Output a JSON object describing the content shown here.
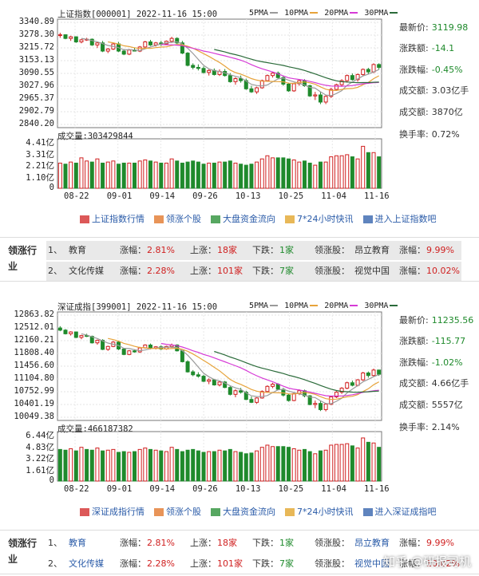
{
  "panels": [
    {
      "title": "上证指数[000001] 2022-11-16 15:00",
      "y_ticks": [
        "3340.89",
        "3278.30",
        "3215.72",
        "3153.13",
        "3090.55",
        "3027.96",
        "2965.37",
        "2902.79",
        "2840.20"
      ],
      "vol_title": "成交量:303429844",
      "vol_ticks": [
        "4.41亿",
        "3.31亿",
        "2.21亿",
        "1.10亿",
        "0"
      ],
      "x_ticks": [
        "08-22",
        "09-01",
        "09-14",
        "09-26",
        "10-13",
        "10-25",
        "11-04",
        "11-16"
      ],
      "stats": [
        {
          "label": "最新价:",
          "value": "3119.98"
        },
        {
          "label": "涨跌额:",
          "value": "-14.1"
        },
        {
          "label": "涨跌幅:",
          "value": "-0.45%"
        },
        {
          "label": "成交额:",
          "value": "3.03亿手"
        },
        {
          "label": "成交额:",
          "value": "3870亿"
        },
        {
          "label": "换手率:",
          "value": "0.72%"
        }
      ],
      "links": [
        "上证指数行情",
        "领涨个股",
        "大盘资金流向",
        "7*24小时快讯",
        "进入上证指数吧"
      ]
    },
    {
      "title": "深证成指[399001] 2022-11-16 15:00",
      "y_ticks": [
        "12863.82",
        "12512.01",
        "12160.21",
        "11808.40",
        "11456.60",
        "11104.80",
        "10752.99",
        "10401.19",
        "10049.38"
      ],
      "vol_title": "成交量:466187382",
      "vol_ticks": [
        "6.44亿",
        "4.83亿",
        "3.22亿",
        "1.61亿",
        "0"
      ],
      "x_ticks": [
        "08-22",
        "09-01",
        "09-14",
        "09-26",
        "10-13",
        "10-25",
        "11-04",
        "11-16"
      ],
      "stats": [
        {
          "label": "最新价:",
          "value": "11235.56"
        },
        {
          "label": "涨跌额:",
          "value": "-115.77"
        },
        {
          "label": "涨跌幅:",
          "value": "-1.02%"
        },
        {
          "label": "成交额:",
          "value": "4.66亿手"
        },
        {
          "label": "成交额:",
          "value": "5557亿"
        },
        {
          "label": "换手率:",
          "value": "2.14%"
        }
      ],
      "links": [
        "深证成指行情",
        "领涨个股",
        "大盘资金流向",
        "7*24小时快讯",
        "进入深证成指吧"
      ]
    }
  ],
  "legend": [
    {
      "name": "5PMA",
      "color": "#9a9a9a"
    },
    {
      "name": "10PMA",
      "color": "#e7a33a"
    },
    {
      "name": "20PMA",
      "color": "#d63ad6"
    },
    {
      "name": "30PMA",
      "color": "#2b6b3a"
    }
  ],
  "industry_header": "领涨行业",
  "industry_rows": [
    {
      "rank": "1、",
      "name": "教育",
      "chg_label": "涨幅：",
      "chg": "2.81%",
      "up_label": "上涨：",
      "up": "18家",
      "down_label": "下跌：",
      "down": "1家",
      "lead_label": "领涨股：",
      "lead": "昂立教育",
      "lead_chg_label": "涨幅：",
      "lead_chg": "9.99%"
    },
    {
      "rank": "2、",
      "name": "文化传媒",
      "chg_label": "涨幅：",
      "chg": "2.28%",
      "up_label": "上涨：",
      "up": "101家",
      "down_label": "下跌：",
      "down": "7家",
      "lead_label": "领涨股：",
      "lead": "视觉中国",
      "lead_chg_label": "涨幅：",
      "lead_chg": "10.02%"
    }
  ],
  "watermark": "知乎 @研报司机",
  "colors": {
    "up": "#d02020",
    "down": "#1f8a2c",
    "link": "#2a5ba8"
  },
  "chart_data": [
    {
      "type": "candlestick",
      "title": "上证指数[000001] 2022-11-16 15:00",
      "ylim": [
        2840.2,
        3340.89
      ],
      "candles": [
        [
          3278,
          3290,
          3265,
          3280
        ],
        [
          3280,
          3282,
          3258,
          3262
        ],
        [
          3262,
          3275,
          3250,
          3270
        ],
        [
          3270,
          3272,
          3240,
          3245
        ],
        [
          3245,
          3260,
          3238,
          3255
        ],
        [
          3255,
          3265,
          3250,
          3258
        ],
        [
          3258,
          3262,
          3225,
          3230
        ],
        [
          3230,
          3245,
          3215,
          3240
        ],
        [
          3240,
          3250,
          3195,
          3200
        ],
        [
          3200,
          3215,
          3190,
          3210
        ],
        [
          3210,
          3240,
          3205,
          3235
        ],
        [
          3235,
          3245,
          3195,
          3200
        ],
        [
          3200,
          3210,
          3180,
          3185
        ],
        [
          3185,
          3210,
          3180,
          3205
        ],
        [
          3205,
          3215,
          3198,
          3200
        ],
        [
          3200,
          3225,
          3195,
          3220
        ],
        [
          3220,
          3250,
          3215,
          3245
        ],
        [
          3245,
          3255,
          3225,
          3230
        ],
        [
          3230,
          3245,
          3222,
          3240
        ],
        [
          3240,
          3250,
          3225,
          3235
        ],
        [
          3235,
          3252,
          3230,
          3248
        ],
        [
          3248,
          3270,
          3240,
          3262
        ],
        [
          3262,
          3268,
          3235,
          3240
        ],
        [
          3240,
          3250,
          3185,
          3190
        ],
        [
          3190,
          3195,
          3125,
          3130
        ],
        [
          3130,
          3140,
          3110,
          3120
        ],
        [
          3120,
          3135,
          3105,
          3115
        ],
        [
          3115,
          3125,
          3090,
          3095
        ],
        [
          3095,
          3110,
          3080,
          3105
        ],
        [
          3105,
          3115,
          3080,
          3085
        ],
        [
          3085,
          3110,
          3078,
          3100
        ],
        [
          3100,
          3112,
          3075,
          3080
        ],
        [
          3080,
          3092,
          3045,
          3050
        ],
        [
          3050,
          3072,
          3035,
          3065
        ],
        [
          3065,
          3080,
          3045,
          3055
        ],
        [
          3055,
          3065,
          3010,
          3015
        ],
        [
          3015,
          3030,
          2995,
          3000
        ],
        [
          3000,
          3025,
          2990,
          3020
        ],
        [
          3020,
          3060,
          3015,
          3055
        ],
        [
          3055,
          3085,
          3050,
          3080
        ],
        [
          3080,
          3098,
          3070,
          3092
        ],
        [
          3092,
          3100,
          3065,
          3070
        ],
        [
          3070,
          3080,
          3030,
          3038
        ],
        [
          3038,
          3045,
          3000,
          3005
        ],
        [
          3005,
          3045,
          3000,
          3040
        ],
        [
          3040,
          3060,
          3030,
          3055
        ],
        [
          3055,
          3062,
          3025,
          3030
        ],
        [
          3030,
          3035,
          2975,
          2980
        ],
        [
          2980,
          3000,
          2960,
          2985
        ],
        [
          2985,
          3000,
          2940,
          2950
        ],
        [
          2950,
          2985,
          2940,
          2978
        ],
        [
          2978,
          3020,
          2970,
          3012
        ],
        [
          3012,
          3040,
          3005,
          3035
        ],
        [
          3035,
          3062,
          3025,
          3055
        ],
        [
          3055,
          3085,
          3045,
          3080
        ],
        [
          3080,
          3090,
          3055,
          3060
        ],
        [
          3060,
          3090,
          3050,
          3085
        ],
        [
          3085,
          3115,
          3080,
          3110
        ],
        [
          3110,
          3118,
          3085,
          3098
        ],
        [
          3098,
          3140,
          3092,
          3134
        ],
        [
          3134,
          3140,
          3110,
          3120
        ]
      ],
      "volume": [
        2.4,
        2.3,
        2.5,
        2.4,
        2.9,
        2.6,
        2.5,
        2.8,
        2.4,
        2.5,
        2.6,
        2.3,
        2.4,
        2.4,
        2.4,
        2.6,
        2.7,
        2.6,
        2.5,
        2.4,
        2.4,
        2.8,
        2.6,
        2.4,
        2.5,
        2.6,
        2.5,
        2.3,
        2.4,
        2.4,
        2.5,
        2.5,
        2.6,
        2.4,
        2.3,
        2.2,
        2.3,
        2.5,
        2.8,
        3.1,
        2.9,
        2.9,
        2.9,
        2.8,
        2.7,
        2.5,
        2.6,
        2.4,
        2.2,
        2.5,
        2.5,
        3.0,
        3.1,
        3.1,
        3.2,
        3.0,
        2.8,
        4.0,
        3.4,
        3.4,
        3.0
      ]
    },
    {
      "type": "candlestick",
      "title": "深证成指[399001] 2022-11-16 15:00",
      "ylim": [
        10049.38,
        12863.82
      ],
      "candles": [
        [
          12510,
          12560,
          12420,
          12450
        ],
        [
          12450,
          12480,
          12330,
          12350
        ],
        [
          12350,
          12420,
          12300,
          12400
        ],
        [
          12400,
          12410,
          12230,
          12250
        ],
        [
          12250,
          12320,
          12200,
          12300
        ],
        [
          12300,
          12350,
          12260,
          12280
        ],
        [
          12280,
          12300,
          12080,
          12100
        ],
        [
          12100,
          12190,
          12050,
          12170
        ],
        [
          12170,
          12200,
          11900,
          11920
        ],
        [
          11920,
          12020,
          11880,
          12000
        ],
        [
          12000,
          12150,
          11980,
          12120
        ],
        [
          12120,
          12160,
          11900,
          11930
        ],
        [
          11930,
          11960,
          11760,
          11780
        ],
        [
          11780,
          11900,
          11760,
          11880
        ],
        [
          11880,
          11920,
          11830,
          11850
        ],
        [
          11850,
          11990,
          11820,
          11960
        ],
        [
          11960,
          12060,
          11940,
          12040
        ],
        [
          12040,
          12080,
          11920,
          11950
        ],
        [
          11950,
          12010,
          11920,
          11990
        ],
        [
          11990,
          12030,
          11900,
          11930
        ],
        [
          11930,
          12020,
          11910,
          12000
        ],
        [
          12000,
          12080,
          11960,
          12040
        ],
        [
          12040,
          12060,
          11860,
          11880
        ],
        [
          11880,
          11900,
          11560,
          11580
        ],
        [
          11580,
          11620,
          11280,
          11300
        ],
        [
          11300,
          11350,
          11180,
          11220
        ],
        [
          11220,
          11290,
          11140,
          11180
        ],
        [
          11180,
          11220,
          11020,
          11040
        ],
        [
          11040,
          11120,
          10960,
          11080
        ],
        [
          11080,
          11100,
          10920,
          10940
        ],
        [
          10940,
          11060,
          10900,
          11020
        ],
        [
          11020,
          11050,
          10850,
          10870
        ],
        [
          10870,
          10920,
          10650,
          10680
        ],
        [
          10680,
          10820,
          10600,
          10780
        ],
        [
          10780,
          10860,
          10700,
          10740
        ],
        [
          10740,
          10780,
          10520,
          10540
        ],
        [
          10540,
          10620,
          10440,
          10460
        ],
        [
          10460,
          10600,
          10420,
          10580
        ],
        [
          10580,
          10790,
          10560,
          10760
        ],
        [
          10760,
          10930,
          10740,
          10900
        ],
        [
          10900,
          11000,
          10850,
          10960
        ],
        [
          10960,
          10990,
          10800,
          10820
        ],
        [
          10820,
          10860,
          10620,
          10660
        ],
        [
          10660,
          10700,
          10480,
          10510
        ],
        [
          10510,
          10720,
          10490,
          10700
        ],
        [
          10700,
          10820,
          10660,
          10780
        ],
        [
          10780,
          10810,
          10600,
          10640
        ],
        [
          10640,
          10660,
          10380,
          10400
        ],
        [
          10400,
          10510,
          10300,
          10430
        ],
        [
          10430,
          10500,
          10220,
          10260
        ],
        [
          10260,
          10440,
          10210,
          10410
        ],
        [
          10410,
          10640,
          10380,
          10610
        ],
        [
          10610,
          10770,
          10580,
          10740
        ],
        [
          10740,
          10880,
          10690,
          10850
        ],
        [
          10850,
          11030,
          10820,
          11000
        ],
        [
          11000,
          11060,
          10900,
          10930
        ],
        [
          10930,
          11100,
          10900,
          11080
        ],
        [
          11080,
          11300,
          11050,
          11270
        ],
        [
          11270,
          11310,
          11140,
          11200
        ],
        [
          11200,
          11390,
          11170,
          11350
        ],
        [
          11350,
          11360,
          11190,
          11235
        ]
      ],
      "volume": [
        4.4,
        4.3,
        4.5,
        4.2,
        4.7,
        4.4,
        4.3,
        4.6,
        4.2,
        4.3,
        4.4,
        4.0,
        4.1,
        4.0,
        4.1,
        4.4,
        4.6,
        4.4,
        4.3,
        4.2,
        4.1,
        4.7,
        4.4,
        4.1,
        4.3,
        4.4,
        4.2,
        4.0,
        4.1,
        4.1,
        4.3,
        4.2,
        4.4,
        4.1,
        4.0,
        3.8,
        3.9,
        4.2,
        4.7,
        5.0,
        4.8,
        4.8,
        4.8,
        4.7,
        4.5,
        4.3,
        4.4,
        4.1,
        3.8,
        4.2,
        4.3,
        5.0,
        5.1,
        5.1,
        5.2,
        4.9,
        4.6,
        6.0,
        5.4,
        5.3,
        4.7
      ]
    }
  ]
}
